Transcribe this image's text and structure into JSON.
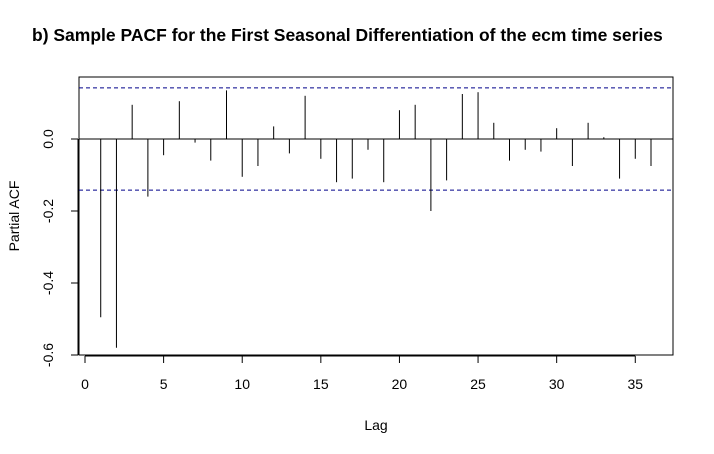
{
  "chart_data": {
    "type": "bar",
    "title": "b) Sample PACF for the First Seasonal Differentiation of the ecm time series",
    "xlabel": "Lag",
    "ylabel": "Partial ACF",
    "xlim": [
      0,
      37
    ],
    "ylim": [
      -0.62,
      0.18
    ],
    "x_ticks": [
      0,
      5,
      10,
      15,
      20,
      25,
      30,
      35
    ],
    "y_ticks": [
      -0.6,
      -0.4,
      -0.2,
      0.0
    ],
    "y_tick_labels": [
      "-0.6",
      "-0.4",
      "-0.2",
      "0.0"
    ],
    "confidence_bound": 0.142,
    "grid": false,
    "colors": {
      "bars": "#000000",
      "bounds": "#00008b",
      "zero_line": "#000000",
      "frame": "#000000"
    },
    "series": [
      {
        "x": [
          1,
          2,
          3,
          4,
          5,
          6,
          7,
          8,
          9,
          10,
          11,
          12,
          13,
          14,
          15,
          16,
          17,
          18,
          19,
          20,
          21,
          22,
          23,
          24,
          25,
          26,
          27,
          28,
          29,
          30,
          31,
          32,
          33,
          34,
          35,
          36
        ],
        "values": [
          -0.495,
          -0.58,
          0.095,
          -0.16,
          -0.045,
          0.105,
          -0.01,
          -0.06,
          0.135,
          -0.105,
          -0.075,
          0.035,
          -0.04,
          0.12,
          -0.055,
          -0.12,
          -0.11,
          -0.03,
          -0.12,
          0.08,
          0.095,
          -0.2,
          -0.115,
          0.125,
          0.13,
          0.045,
          -0.06,
          -0.03,
          -0.035,
          0.03,
          -0.075,
          0.045,
          0.005,
          -0.11,
          -0.055,
          -0.075
        ]
      }
    ]
  }
}
